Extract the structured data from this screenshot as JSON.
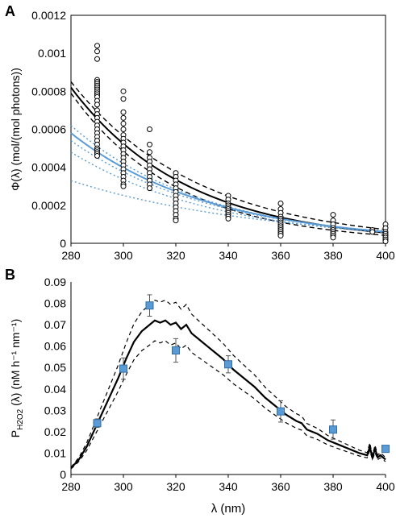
{
  "colors": {
    "axis": "#000000",
    "fit": "#000000",
    "ci": "#000000",
    "blue": "#5b9bd5",
    "marker_fill": "#5b9bd5",
    "marker_stroke": "#2f6ea6",
    "error_bar": "#555555"
  },
  "chart_data": [
    {
      "panel": "A",
      "type": "scatter",
      "ylabel": "Φ(λ)  (mol/(mol photons))",
      "xlabel": "",
      "xlim": [
        280,
        400
      ],
      "ylim": [
        0,
        0.0012
      ],
      "x_ticks": [
        280,
        300,
        320,
        340,
        360,
        380,
        400
      ],
      "y_ticks": [
        0,
        0.0002,
        0.0004,
        0.0006,
        0.0008,
        0.001,
        0.0012
      ],
      "y_tick_labels": [
        "0",
        "0.0002",
        "0.0004",
        "0.0006",
        "0.0008",
        "0.001",
        "0.0012"
      ],
      "grid": false,
      "legend": "none",
      "points": [
        {
          "x": 290,
          "y": [
            0.00104,
            0.00101,
            0.00097,
            0.00086,
            0.00085,
            0.00084,
            0.00083,
            0.00082,
            0.00081,
            0.0008,
            0.00079,
            0.00078,
            0.00077,
            0.00075,
            0.00073,
            0.0007,
            0.00068,
            0.00066,
            0.00064,
            0.00062,
            0.0006,
            0.00058,
            0.00056,
            0.00054,
            0.00052,
            0.0005,
            0.00049,
            0.00048,
            0.00047,
            0.00046
          ]
        },
        {
          "x": 300,
          "y": [
            0.0008,
            0.00076,
            0.00069,
            0.00066,
            0.00063,
            0.0006,
            0.00057,
            0.00055,
            0.00053,
            0.00051,
            0.00049,
            0.00047,
            0.00045,
            0.00043,
            0.00041,
            0.00039,
            0.00037,
            0.00035,
            0.00033,
            0.00031,
            0.0003
          ]
        },
        {
          "x": 310,
          "y": [
            0.0006,
            0.00052,
            0.00048,
            0.00045,
            0.00043,
            0.00041,
            0.00039,
            0.00037,
            0.00035,
            0.00033,
            0.00031,
            0.00029
          ]
        },
        {
          "x": 320,
          "y": [
            0.00037,
            0.00035,
            0.00033,
            0.00031,
            0.00029,
            0.00027,
            0.00025,
            0.00023,
            0.00021,
            0.00019,
            0.00017,
            0.00015,
            0.00013,
            0.00012
          ]
        },
        {
          "x": 340,
          "y": [
            0.00025,
            0.00023,
            0.00021,
            0.0002,
            0.00019,
            0.00018,
            0.00017,
            0.00016,
            0.00015,
            0.00014,
            0.00013
          ]
        },
        {
          "x": 360,
          "y": [
            0.00021,
            0.00018,
            0.00016,
            0.00014,
            0.00013,
            0.00012,
            0.00011,
            0.0001,
            9e-05,
            8e-05,
            7e-05,
            6e-05,
            5e-05,
            4e-05
          ]
        },
        {
          "x": 380,
          "y": [
            0.00015,
            0.00012,
            0.0001,
            8e-05,
            7e-05,
            6e-05,
            5e-05,
            4e-05,
            3e-05
          ]
        },
        {
          "x": 395,
          "y": [
            7e-05,
            6e-05
          ]
        },
        {
          "x": 400,
          "y": [
            0.0001,
            8e-05,
            6e-05,
            5e-05,
            4e-05,
            3e-05,
            2e-05,
            1e-05
          ]
        }
      ],
      "curves": [
        {
          "style": "solid",
          "color": "black",
          "a": 0.00082,
          "k": 0.0224
        },
        {
          "style": "dashed",
          "color": "black",
          "a": 0.00085,
          "k": 0.0205
        },
        {
          "style": "dashed",
          "color": "black",
          "a": 0.00079,
          "k": 0.0245
        },
        {
          "style": "solid",
          "color": "blue",
          "a": 0.00058,
          "k": 0.0188
        },
        {
          "style": "dotted",
          "color": "blue",
          "a": 0.00062,
          "k": 0.0195
        },
        {
          "style": "dotted",
          "color": "blue",
          "a": 0.00054,
          "k": 0.0182
        },
        {
          "style": "dotted",
          "color": "blue",
          "a": 0.00048,
          "k": 0.0178
        },
        {
          "style": "dotted",
          "color": "blue",
          "a": 0.00033,
          "k": 0.0135
        }
      ]
    },
    {
      "panel": "B",
      "type": "line",
      "ylabel": "P_H2O2 (λ)  (nM h⁻¹ nm⁻¹)",
      "xlabel": "λ  (nm)",
      "xlim": [
        280,
        400
      ],
      "ylim": [
        0,
        0.09
      ],
      "x_ticks": [
        280,
        300,
        320,
        340,
        360,
        380,
        400
      ],
      "y_ticks": [
        0,
        0.01,
        0.02,
        0.03,
        0.04,
        0.05,
        0.06,
        0.07,
        0.08,
        0.09
      ],
      "y_tick_labels": [
        "0",
        "0.01",
        "0.02",
        "0.03",
        "0.04",
        "0.05",
        "0.06",
        "0.07",
        "0.08",
        "0.09"
      ],
      "grid": false,
      "legend": "none",
      "line_x": [
        280,
        283,
        286,
        289,
        292,
        295,
        298,
        301,
        304,
        307,
        310,
        312,
        314,
        316,
        318,
        320,
        322,
        324,
        326,
        328,
        330,
        334,
        338,
        342,
        346,
        350,
        354,
        358,
        362,
        366,
        368,
        370,
        374,
        378,
        382,
        386,
        390,
        393,
        394,
        395,
        396,
        397,
        398,
        400
      ],
      "line_y": [
        0.003,
        0.007,
        0.013,
        0.021,
        0.029,
        0.037,
        0.045,
        0.054,
        0.062,
        0.067,
        0.07,
        0.072,
        0.071,
        0.072,
        0.07,
        0.071,
        0.068,
        0.07,
        0.066,
        0.064,
        0.062,
        0.058,
        0.054,
        0.049,
        0.045,
        0.041,
        0.036,
        0.032,
        0.028,
        0.025,
        0.024,
        0.021,
        0.019,
        0.016,
        0.014,
        0.012,
        0.01,
        0.009,
        0.013,
        0.008,
        0.012,
        0.008,
        0.009,
        0.007
      ],
      "ci_offset": 0.0095,
      "markers": [
        {
          "x": 290,
          "y": 0.024,
          "err": 0.002
        },
        {
          "x": 300,
          "y": 0.0495,
          "err": 0.005
        },
        {
          "x": 310,
          "y": 0.079,
          "err": 0.005
        },
        {
          "x": 320,
          "y": 0.058,
          "err": 0.0055
        },
        {
          "x": 340,
          "y": 0.0515,
          "err": 0.004
        },
        {
          "x": 360,
          "y": 0.0295,
          "err": 0.005
        },
        {
          "x": 380,
          "y": 0.021,
          "err": 0.0045
        },
        {
          "x": 400,
          "y": 0.012,
          "err": 0.0015
        }
      ]
    }
  ],
  "panel_labels": [
    "A",
    "B"
  ]
}
